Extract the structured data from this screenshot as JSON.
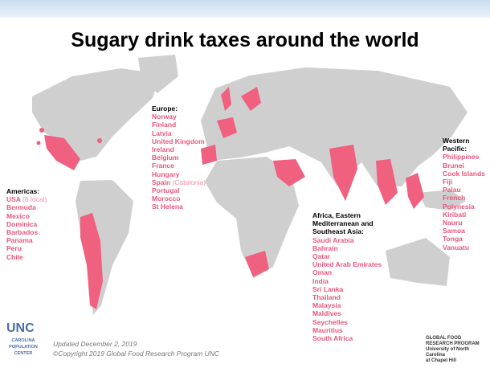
{
  "title": "Sugary drink taxes around the world",
  "regions": [
    {
      "heading": "Americas:",
      "items": [
        {
          "name": "USA",
          "note": "(8 local)"
        },
        {
          "name": "Bermuda"
        },
        {
          "name": "Mexico"
        },
        {
          "name": "Dominica"
        },
        {
          "name": "Barbados"
        },
        {
          "name": "Panama"
        },
        {
          "name": "Peru"
        },
        {
          "name": "Chile"
        }
      ]
    },
    {
      "heading": "Europe:",
      "items": [
        {
          "name": "Norway"
        },
        {
          "name": "Finland"
        },
        {
          "name": "Latvia"
        },
        {
          "name": "United Kingdom"
        },
        {
          "name": "Ireland"
        },
        {
          "name": "Belgium"
        },
        {
          "name": "France"
        },
        {
          "name": "Hungary"
        },
        {
          "name": "Spain",
          "note": "(Catalonia)"
        },
        {
          "name": "Portugal"
        },
        {
          "name": "Morocco"
        },
        {
          "name": "St Helena"
        }
      ]
    },
    {
      "heading": "Africa, Eastern Mediterranean and Southeast Asia:",
      "items": [
        {
          "name": "Saudi Arabia"
        },
        {
          "name": "Bahrain"
        },
        {
          "name": "Qatar"
        },
        {
          "name": "United Arab Emirates"
        },
        {
          "name": "Oman"
        },
        {
          "name": "India"
        },
        {
          "name": "Sri Lanka"
        },
        {
          "name": "Thailand"
        },
        {
          "name": "Malaysia"
        },
        {
          "name": "Maldives"
        },
        {
          "name": "Seychelles"
        },
        {
          "name": "Mauritius"
        },
        {
          "name": "South Africa"
        }
      ]
    },
    {
      "heading": "Western Pacific:",
      "items": [
        {
          "name": "Philippines"
        },
        {
          "name": "Brunei"
        },
        {
          "name": "Cook Islands"
        },
        {
          "name": "Fiji"
        },
        {
          "name": "Palau"
        },
        {
          "name": "French Polynesia"
        },
        {
          "name": "Kiribati"
        },
        {
          "name": "Nauru"
        },
        {
          "name": "Samoa"
        },
        {
          "name": "Tonga"
        },
        {
          "name": "Vanuatu"
        }
      ]
    }
  ],
  "footer": {
    "updated": "Updated December 2, 2019",
    "copyright": "©Copyright 2019 Global Food Research Program UNC"
  },
  "logos": {
    "unc": "UNC",
    "cpc": [
      "CAROLINA",
      "POPULATION",
      "CENTER"
    ],
    "gfrp": [
      "GLOBAL FOOD",
      "RESEARCH PROGRAM",
      "University of North Carolina",
      "at Chapel Hill"
    ]
  }
}
